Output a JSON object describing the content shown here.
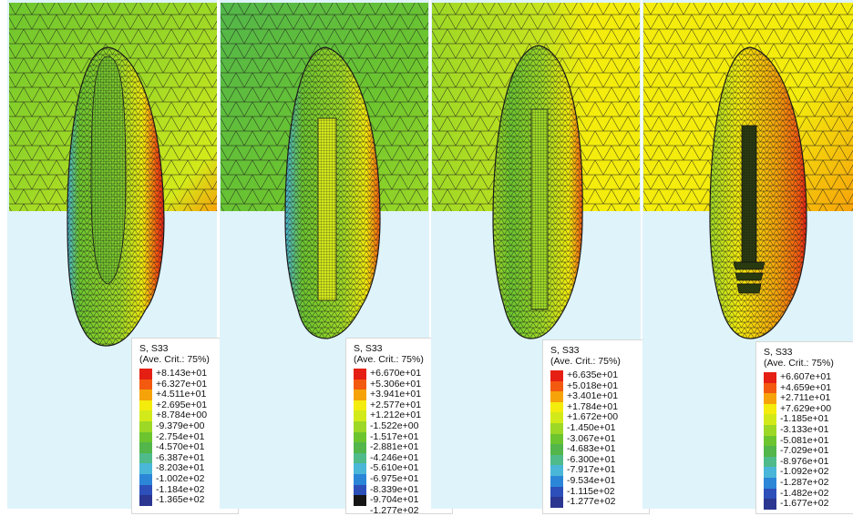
{
  "colors": {
    "background": "#dff3fa",
    "mesh": "#1a1a1a",
    "post": "#2a3a10",
    "scale_13": [
      "#e51f14",
      "#f3590f",
      "#f6a30a",
      "#f4ec0c",
      "#d3ea1a",
      "#9dd826",
      "#6cc52f",
      "#52b64a",
      "#4fba8a",
      "#4ab7d8",
      "#2b86d8",
      "#2c4fba",
      "#2a3690"
    ],
    "scale_13_b": [
      "#e51f14",
      "#f3590f",
      "#f6a30a",
      "#f4ec0c",
      "#d3ea1a",
      "#9dd826",
      "#6cc52f",
      "#52b64a",
      "#4fba8a",
      "#4ab7d8",
      "#2b86d8",
      "#2c4fba",
      "#151515"
    ]
  },
  "panels": [
    {
      "legend": {
        "title": "S, S33",
        "subtitle": "(Ave. Crit.: 75%)",
        "values": [
          "+8.143e+01",
          "+6.327e+01",
          "+4.511e+01",
          "+2.695e+01",
          "+8.784e+00",
          "-9.379e+00",
          "-2.754e+01",
          "-4.570e+01",
          "-6.387e+01",
          "-8.203e+01",
          "-1.002e+02",
          "-1.184e+02",
          "-1.365e+02"
        ]
      }
    },
    {
      "legend": {
        "title": "S, S33",
        "subtitle": "(Ave. Crit.: 75%)",
        "values": [
          "+6.670e+01",
          "+5.306e+01",
          "+3.941e+01",
          "+2.577e+01",
          "+1.212e+01",
          "-1.522e+00",
          "-1.517e+01",
          "-2.881e+01",
          "-4.246e+01",
          "-5.610e+01",
          "-6.975e+01",
          "-8.339e+01",
          "-9.704e+01",
          "-1.277e+02"
        ]
      }
    },
    {
      "legend": {
        "title": "S, S33",
        "subtitle": "(Ave. Crit.: 75%)",
        "values": [
          "+6.635e+01",
          "+5.018e+01",
          "+3.401e+01",
          "+1.784e+01",
          "+1.672e+00",
          "-1.450e+01",
          "-3.067e+01",
          "-4.683e+01",
          "-6.300e+01",
          "-7.917e+01",
          "-9.534e+01",
          "-1.115e+02",
          "-1.277e+02"
        ]
      }
    },
    {
      "legend": {
        "title": "S, S33",
        "subtitle": "(Ave. Crit.: 75%)",
        "values": [
          "+6.607e+01",
          "+4.659e+01",
          "+2.711e+01",
          "+7.629e+00",
          "-1.185e+01",
          "-3.133e+01",
          "-5.081e+01",
          "-7.029e+01",
          "-8.976e+01",
          "-1.092e+02",
          "-1.287e+02",
          "-1.482e+02",
          "-1.677e+02"
        ]
      }
    }
  ]
}
